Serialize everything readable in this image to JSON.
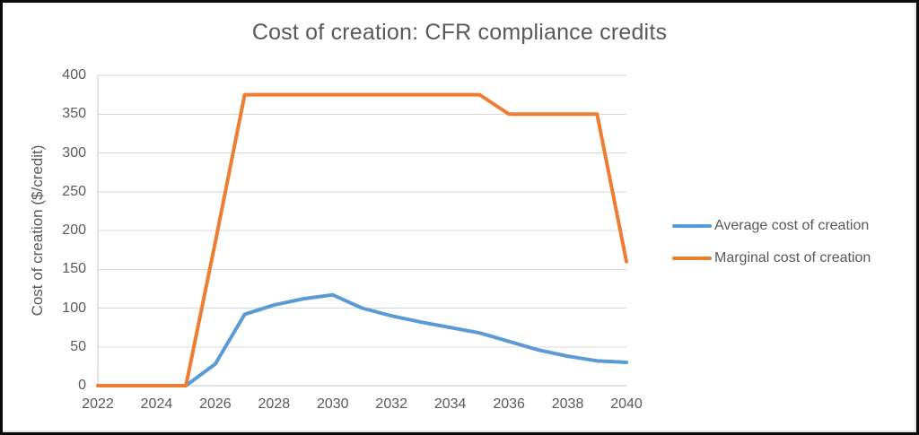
{
  "chart_data": {
    "type": "line",
    "title": "Cost of creation: CFR compliance credits",
    "xlabel": "",
    "ylabel": "Cost of creation ($/credit)",
    "x": [
      2022,
      2023,
      2024,
      2025,
      2026,
      2027,
      2028,
      2029,
      2030,
      2031,
      2032,
      2033,
      2034,
      2035,
      2036,
      2037,
      2038,
      2039,
      2040
    ],
    "x_tick_labels": [
      "2022",
      "2024",
      "2026",
      "2028",
      "2030",
      "2032",
      "2034",
      "2036",
      "2038",
      "2040"
    ],
    "x_tick_values": [
      2022,
      2024,
      2026,
      2028,
      2030,
      2032,
      2034,
      2036,
      2038,
      2040
    ],
    "y_tick_labels": [
      "0",
      "50",
      "100",
      "150",
      "200",
      "250",
      "300",
      "350",
      "400"
    ],
    "y_tick_values": [
      0,
      50,
      100,
      150,
      200,
      250,
      300,
      350,
      400
    ],
    "xlim": [
      2022,
      2040
    ],
    "ylim": [
      0,
      400
    ],
    "grid": "horizontal",
    "legend_position": "right",
    "series": [
      {
        "name": "Average cost of creation",
        "color": "#5B9BD5",
        "values": [
          0,
          0,
          0,
          0,
          28,
          92,
          104,
          112,
          117,
          100,
          90,
          82,
          75,
          68,
          57,
          46,
          38,
          32,
          30
        ]
      },
      {
        "name": "Marginal cost of creation",
        "color": "#ED7D31",
        "values": [
          0,
          0,
          0,
          0,
          185,
          375,
          375,
          375,
          375,
          375,
          375,
          375,
          375,
          375,
          350,
          350,
          350,
          350,
          160
        ]
      }
    ],
    "colors": {
      "text": "#595959",
      "gridline": "#D9D9D9",
      "axis": "#C6C6C6",
      "background": "#FFFFFF",
      "border": "#0A0A0A"
    }
  }
}
